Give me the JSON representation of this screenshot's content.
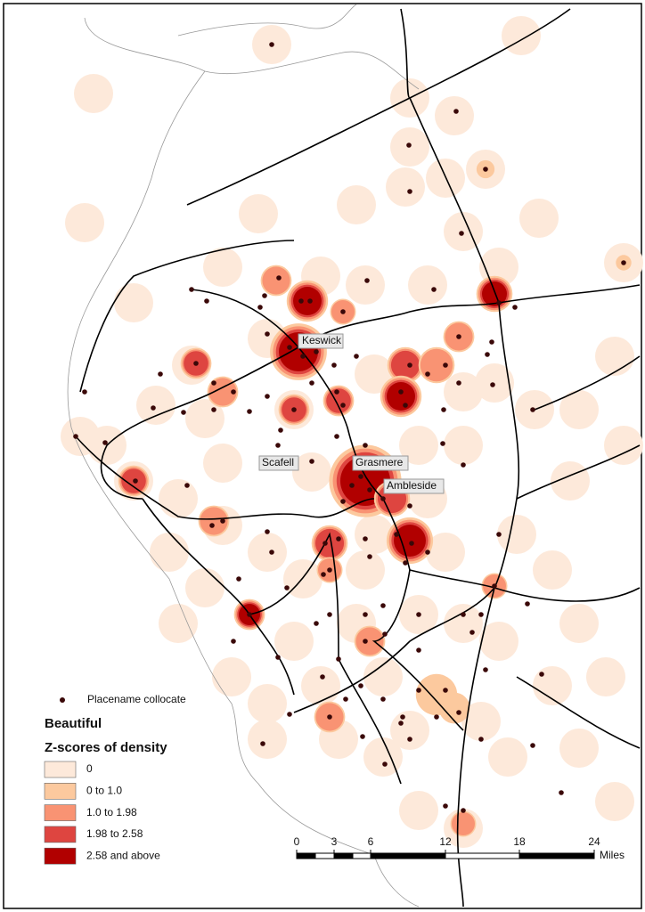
{
  "places": [
    "Keswick",
    "Scafell",
    "Grasmere",
    "Ambleside"
  ],
  "legend": {
    "point": "Placename collocate",
    "title": "Beautiful",
    "subtitle": "Z-scores of density",
    "classes": [
      "0",
      "0 to 1.0",
      "1.0 to 1.98",
      "1.98 to 2.58",
      "2.58 and above"
    ]
  },
  "scale": {
    "labels": [
      "0",
      "3",
      "6",
      "12",
      "18",
      "24"
    ],
    "unit": "Miles"
  }
}
